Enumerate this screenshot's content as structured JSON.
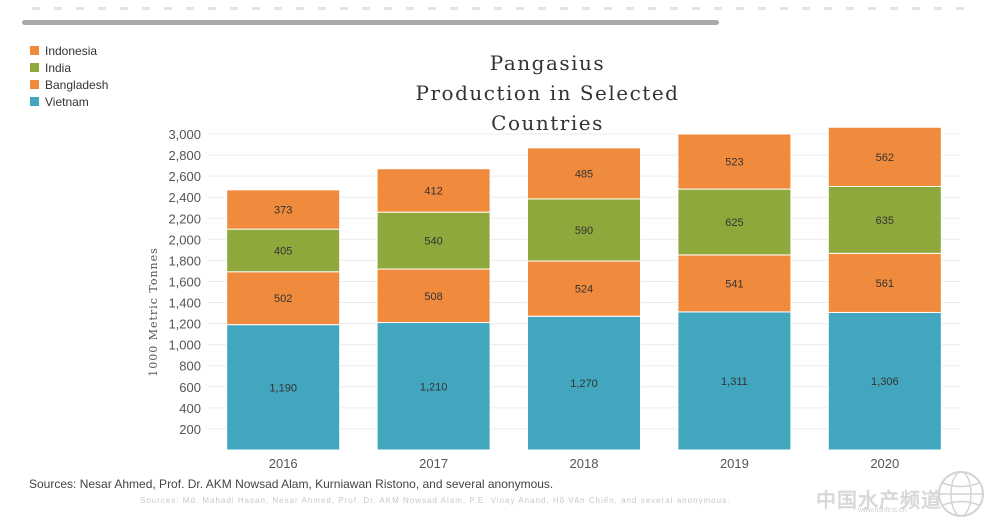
{
  "chart_data": {
    "type": "bar",
    "stacked": true,
    "title": "Pangasius\nProduction in Selected Countries",
    "title_lines": [
      "Pangasius",
      "Production in Selected Countries"
    ],
    "ylabel": "1000 Metric Tonnes",
    "xlabel": "",
    "categories": [
      "2016",
      "2017",
      "2018",
      "2019",
      "2020"
    ],
    "series": [
      {
        "name": "Vietnam",
        "color": "#43a6bf",
        "values": [
          1190,
          1210,
          1270,
          1311,
          1306
        ],
        "labels": [
          "1,190",
          "1,210",
          "1,270",
          "1,311",
          "1,306"
        ]
      },
      {
        "name": "Bangladesh",
        "color": "#f08a3c",
        "values": [
          502,
          508,
          524,
          541,
          561
        ],
        "labels": [
          "502",
          "508",
          "524",
          "541",
          "561"
        ]
      },
      {
        "name": "India",
        "color": "#8ea83b",
        "values": [
          405,
          540,
          590,
          625,
          635
        ],
        "labels": [
          "405",
          "540",
          "590",
          "625",
          "635"
        ]
      },
      {
        "name": "Indonesia",
        "color": "#f08a3c",
        "values": [
          373,
          412,
          485,
          523,
          562
        ],
        "labels": [
          "373",
          "412",
          "485",
          "523",
          "562"
        ]
      }
    ],
    "legend_order": [
      "Indonesia",
      "India",
      "Bangladesh",
      "Vietnam"
    ],
    "ylim": [
      0,
      3000
    ],
    "yticks": [
      200,
      400,
      600,
      800,
      1000,
      1200,
      1400,
      1600,
      1800,
      2000,
      2200,
      2400,
      2600,
      2800,
      3000
    ],
    "ytick_labels": [
      "200",
      "400",
      "600",
      "800",
      "1,000",
      "1,200",
      "1,400",
      "1,600",
      "1,800",
      "2,000",
      "2,200",
      "2,400",
      "2,600",
      "2,800",
      "3,000"
    ],
    "grid": true,
    "legend_position": "top-left"
  },
  "legend": [
    {
      "label": "Indonesia",
      "color": "#f08a3c"
    },
    {
      "label": "India",
      "color": "#8ea83b"
    },
    {
      "label": "Bangladesh",
      "color": "#f08a3c"
    },
    {
      "label": "Vietnam",
      "color": "#43a6bf"
    }
  ],
  "source_note": "Sources: Nesar Ahmed, Prof. Dr. AKM Nowsad Alam, Kurniawan Ristono, and several anonymous.",
  "faded_note": "Sources: Md. Mahadi Hasan, Nesar Ahmed, Prof. Dr. AKM Nowsad Alam, P.E. Vinay Anand, Hồ Văn Chiến, and several anonymous.",
  "watermark": {
    "text": "中国水产频道",
    "url": "www.fishfirst.cn"
  }
}
